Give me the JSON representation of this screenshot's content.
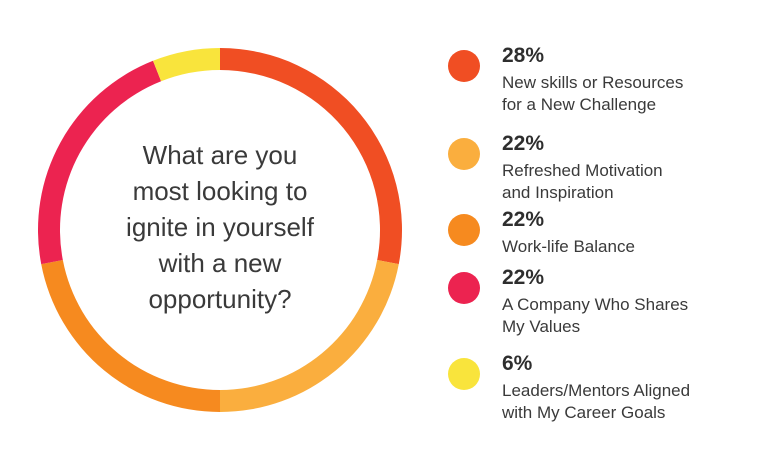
{
  "chart_data": {
    "type": "pie",
    "title": "",
    "center_text": [
      "What are you",
      "most looking to",
      "ignite in yourself",
      "with a new",
      "opportunity?"
    ],
    "slices": [
      {
        "value": 28,
        "percent_label": "28%",
        "label_lines": [
          "New skills or Resources",
          "for a New Challenge"
        ],
        "color": "#F04E23"
      },
      {
        "value": 22,
        "percent_label": "22%",
        "label_lines": [
          "Refreshed Motivation",
          "and Inspiration"
        ],
        "color": "#FAAE3E"
      },
      {
        "value": 22,
        "percent_label": "22%",
        "label_lines": [
          "Work-life Balance"
        ],
        "color": "#F68A1F"
      },
      {
        "value": 22,
        "percent_label": "22%",
        "label_lines": [
          "A Company Who Shares",
          "My Values"
        ],
        "color": "#EC2350"
      },
      {
        "value": 6,
        "percent_label": "6%",
        "label_lines": [
          "Leaders/Mentors Aligned",
          "with My Career Goals"
        ],
        "color": "#F9E43C"
      }
    ],
    "donut": true,
    "legend": "right",
    "start_angle": "top",
    "direction": "clockwise"
  }
}
